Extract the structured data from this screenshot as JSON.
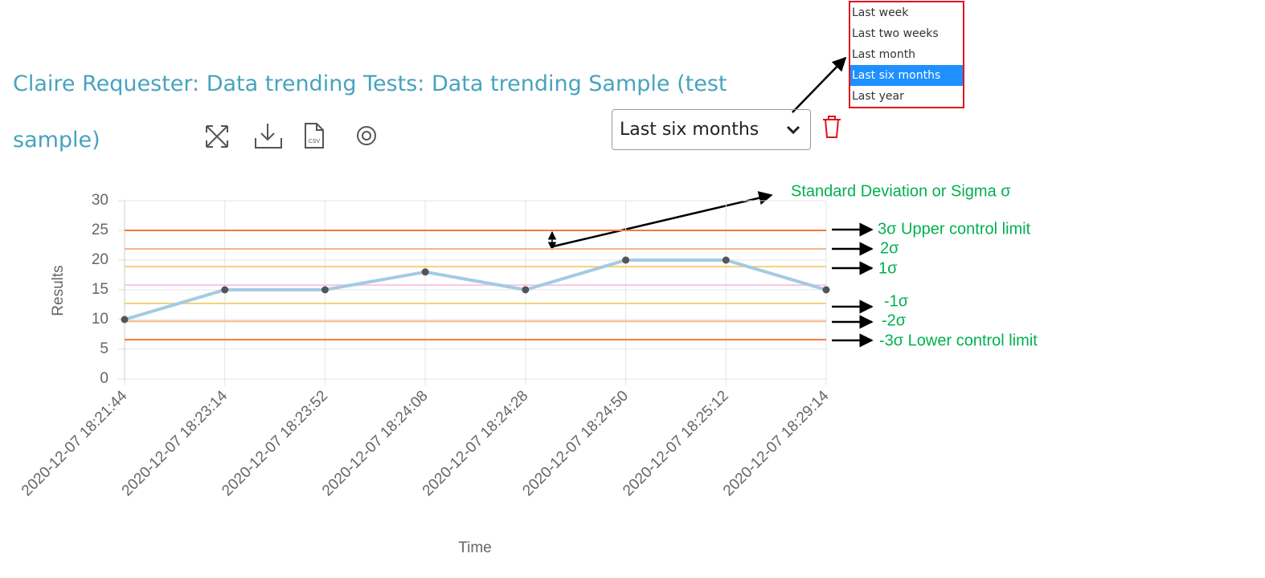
{
  "header": {
    "title": "Claire Requester: Data trending Tests: Data trending Sample (test sample)"
  },
  "dropdown": {
    "selected": "Last six months",
    "options": [
      "Last week",
      "Last two weeks",
      "Last month",
      "Last six months",
      "Last year"
    ],
    "highlighted": 3
  },
  "annotations": {
    "sigma": "Standard Deviation or Sigma σ",
    "limits": [
      "3σ Upper control limit",
      "2σ",
      "1σ",
      "-1σ",
      "-2σ",
      "-3σ Lower control limit"
    ]
  },
  "chart_data": {
    "type": "line",
    "x_label": "Time",
    "y_label": "Results",
    "x": [
      "2020-12-07 18:21:44",
      "2020-12-07 18:23:14",
      "2020-12-07 18:23:52",
      "2020-12-07 18:24:08",
      "2020-12-07 18:24:28",
      "2020-12-07 18:24:50",
      "2020-12-07 18:25:12",
      "2020-12-07 18:29:14"
    ],
    "series": [
      {
        "color": "#a3cbe3",
        "point_color": "#555555",
        "values": [
          10,
          15,
          15,
          18,
          15,
          20,
          20,
          15
        ]
      }
    ],
    "control_lines": [
      {
        "value": 25,
        "color": "#f07a3c"
      },
      {
        "value": 21.9,
        "color": "#f7b58a"
      },
      {
        "value": 18.9,
        "color": "#f5d27a"
      },
      {
        "value": 15.8,
        "color": "#f7c6e8"
      },
      {
        "value": 12.7,
        "color": "#f5d27a"
      },
      {
        "value": 9.7,
        "color": "#f7b58a"
      },
      {
        "value": 6.6,
        "color": "#f07a3c"
      }
    ],
    "ylim": [
      0,
      30
    ],
    "yticks": [
      0,
      5,
      10,
      15,
      20,
      25,
      30
    ],
    "grid": true
  }
}
